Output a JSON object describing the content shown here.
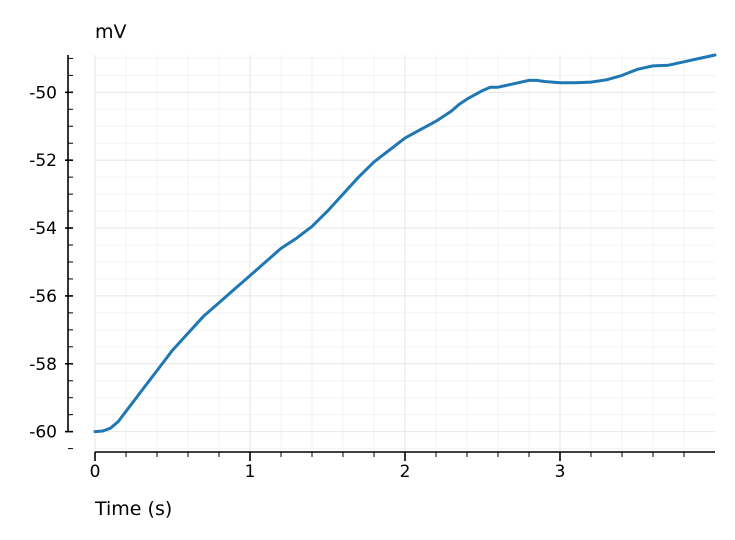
{
  "chart_data": {
    "type": "line",
    "title": "",
    "xlabel": "Time (s)",
    "ylabel": "mV",
    "xlim": [
      0,
      4
    ],
    "ylim": [
      -60.6,
      -48.9
    ],
    "x_ticks": [
      0,
      1,
      2,
      3
    ],
    "x_tick_labels": [
      "0",
      "1",
      "2",
      "3"
    ],
    "y_ticks": [
      -60,
      -58,
      -56,
      -54,
      -52,
      -50
    ],
    "y_tick_labels": [
      "-60",
      "-58",
      "-56",
      "-54",
      "-52",
      "-50"
    ],
    "grid": true,
    "minor_grid": true,
    "series": [
      {
        "color": "#1f77b4",
        "x": [
          0,
          0.05,
          0.1,
          0.15,
          0.2,
          0.25,
          0.3,
          0.35,
          0.4,
          0.45,
          0.5,
          0.6,
          0.7,
          0.8,
          0.9,
          1.0,
          1.1,
          1.2,
          1.3,
          1.4,
          1.5,
          1.6,
          1.7,
          1.8,
          1.9,
          2.0,
          2.1,
          2.2,
          2.3,
          2.35,
          2.4,
          2.5,
          2.55,
          2.6,
          2.7,
          2.8,
          2.85,
          2.9,
          3.0,
          3.1,
          3.2,
          3.3,
          3.4,
          3.5,
          3.6,
          3.7,
          3.8,
          3.9,
          4.0
        ],
        "y": [
          -60.0,
          -59.98,
          -59.9,
          -59.7,
          -59.4,
          -59.1,
          -58.8,
          -58.5,
          -58.2,
          -57.9,
          -57.6,
          -57.1,
          -56.6,
          -56.2,
          -55.8,
          -55.4,
          -55.0,
          -54.6,
          -54.3,
          -53.95,
          -53.5,
          -53.0,
          -52.5,
          -52.05,
          -51.7,
          -51.35,
          -51.1,
          -50.85,
          -50.55,
          -50.35,
          -50.2,
          -49.95,
          -49.85,
          -49.85,
          -49.75,
          -49.65,
          -49.65,
          -49.68,
          -49.72,
          -49.72,
          -49.7,
          -49.63,
          -49.5,
          -49.32,
          -49.22,
          -49.2,
          -49.1,
          -49.0,
          -48.9
        ]
      }
    ]
  }
}
